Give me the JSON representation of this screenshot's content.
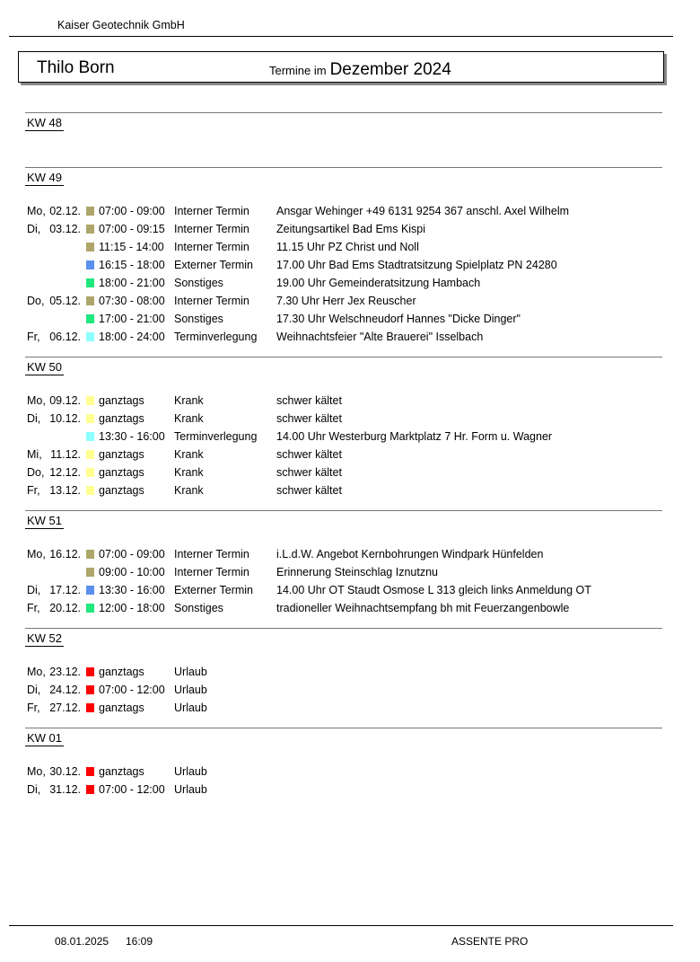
{
  "header": {
    "company": "Kaiser Geotechnik GmbH",
    "person": "Thilo Born",
    "termine_label": "Termine im",
    "month": "Dezember 2024"
  },
  "colors": {
    "Interner Termin": "#aea66a",
    "Externer Termin": "#5b8ff0",
    "Sonstiges": "#1fe87c",
    "Terminverlegung": "#8cffff",
    "Krank": "#ffff90",
    "Urlaub": "#ff0000"
  },
  "weeks": [
    {
      "kw": "KW 48",
      "rows": []
    },
    {
      "kw": "KW 49",
      "rows": [
        {
          "day": "Mo,",
          "date": "02.12.",
          "time": "07:00 - 09:00",
          "type": "Interner Termin",
          "desc": "Ansgar Wehinger +49 6131 9254 367 anschl. Axel Wilhelm"
        },
        {
          "day": "Di,",
          "date": "03.12.",
          "time": "07:00 - 09:15",
          "type": "Interner Termin",
          "desc": "Zeitungsartikel Bad Ems Kispi"
        },
        {
          "day": "",
          "date": "",
          "time": "11:15 - 14:00",
          "type": "Interner Termin",
          "desc": "11.15 Uhr PZ Christ und Noll"
        },
        {
          "day": "",
          "date": "",
          "time": "16:15 - 18:00",
          "type": "Externer Termin",
          "desc": "17.00 Uhr Bad Ems Stadtratsitzung Spielplatz PN 24280"
        },
        {
          "day": "",
          "date": "",
          "time": "18:00 - 21:00",
          "type": "Sonstiges",
          "desc": "19.00 Uhr Gemeinderatsitzung Hambach"
        },
        {
          "day": "Do,",
          "date": "05.12.",
          "time": "07:30 - 08:00",
          "type": "Interner Termin",
          "desc": "7.30 Uhr Herr Jex Reuscher"
        },
        {
          "day": "",
          "date": "",
          "time": "17:00 - 21:00",
          "type": "Sonstiges",
          "desc": "17.30 Uhr Welschneudorf Hannes \"Dicke Dinger\""
        },
        {
          "day": "Fr,",
          "date": "06.12.",
          "time": "18:00 - 24:00",
          "type": "Terminverlegung",
          "desc": "Weihnachtsfeier \"Alte Brauerei\" Isselbach"
        }
      ]
    },
    {
      "kw": "KW 50",
      "rows": [
        {
          "day": "Mo,",
          "date": "09.12.",
          "time": "ganztags",
          "type": "Krank",
          "desc": "schwer kältet"
        },
        {
          "day": "Di,",
          "date": "10.12.",
          "time": "ganztags",
          "type": "Krank",
          "desc": "schwer kältet"
        },
        {
          "day": "",
          "date": "",
          "time": "13:30 - 16:00",
          "type": "Terminverlegung",
          "desc": "14.00 Uhr Westerburg Marktplatz 7 Hr. Form u. Wagner"
        },
        {
          "day": "Mi,",
          "date": "11.12.",
          "time": "ganztags",
          "type": "Krank",
          "desc": "schwer kältet"
        },
        {
          "day": "Do,",
          "date": "12.12.",
          "time": "ganztags",
          "type": "Krank",
          "desc": "schwer kältet"
        },
        {
          "day": "Fr,",
          "date": "13.12.",
          "time": "ganztags",
          "type": "Krank",
          "desc": "schwer kältet"
        }
      ]
    },
    {
      "kw": "KW 51",
      "rows": [
        {
          "day": "Mo,",
          "date": "16.12.",
          "time": "07:00 - 09:00",
          "type": "Interner Termin",
          "desc": "i.L.d.W. Angebot Kernbohrungen Windpark Hünfelden"
        },
        {
          "day": "",
          "date": "",
          "time": "09:00 - 10:00",
          "type": "Interner Termin",
          "desc": "Erinnerung Steinschlag Iznutznu"
        },
        {
          "day": "Di,",
          "date": "17.12.",
          "time": "13:30 - 16:00",
          "type": "Externer Termin",
          "desc": "14.00 Uhr  OT Staudt Osmose L 313 gleich links Anmeldung OT"
        },
        {
          "day": "Fr,",
          "date": "20.12.",
          "time": "12:00 - 18:00",
          "type": "Sonstiges",
          "desc": "tradioneller Weihnachtsempfang bh mit Feuerzangenbowle"
        }
      ]
    },
    {
      "kw": "KW 52",
      "rows": [
        {
          "day": "Mo,",
          "date": "23.12.",
          "time": "ganztags",
          "type": "Urlaub",
          "desc": ""
        },
        {
          "day": "Di,",
          "date": "24.12.",
          "time": "07:00 - 12:00",
          "type": "Urlaub",
          "desc": ""
        },
        {
          "day": "Fr,",
          "date": "27.12.",
          "time": "ganztags",
          "type": "Urlaub",
          "desc": ""
        }
      ]
    },
    {
      "kw": "KW 01",
      "rows": [
        {
          "day": "Mo,",
          "date": "30.12.",
          "time": "ganztags",
          "type": "Urlaub",
          "desc": ""
        },
        {
          "day": "Di,",
          "date": "31.12.",
          "time": "07:00 - 12:00",
          "type": "Urlaub",
          "desc": ""
        }
      ]
    }
  ],
  "footer": {
    "date": "08.01.2025",
    "time": "16:09",
    "app": "ASSENTE PRO"
  }
}
